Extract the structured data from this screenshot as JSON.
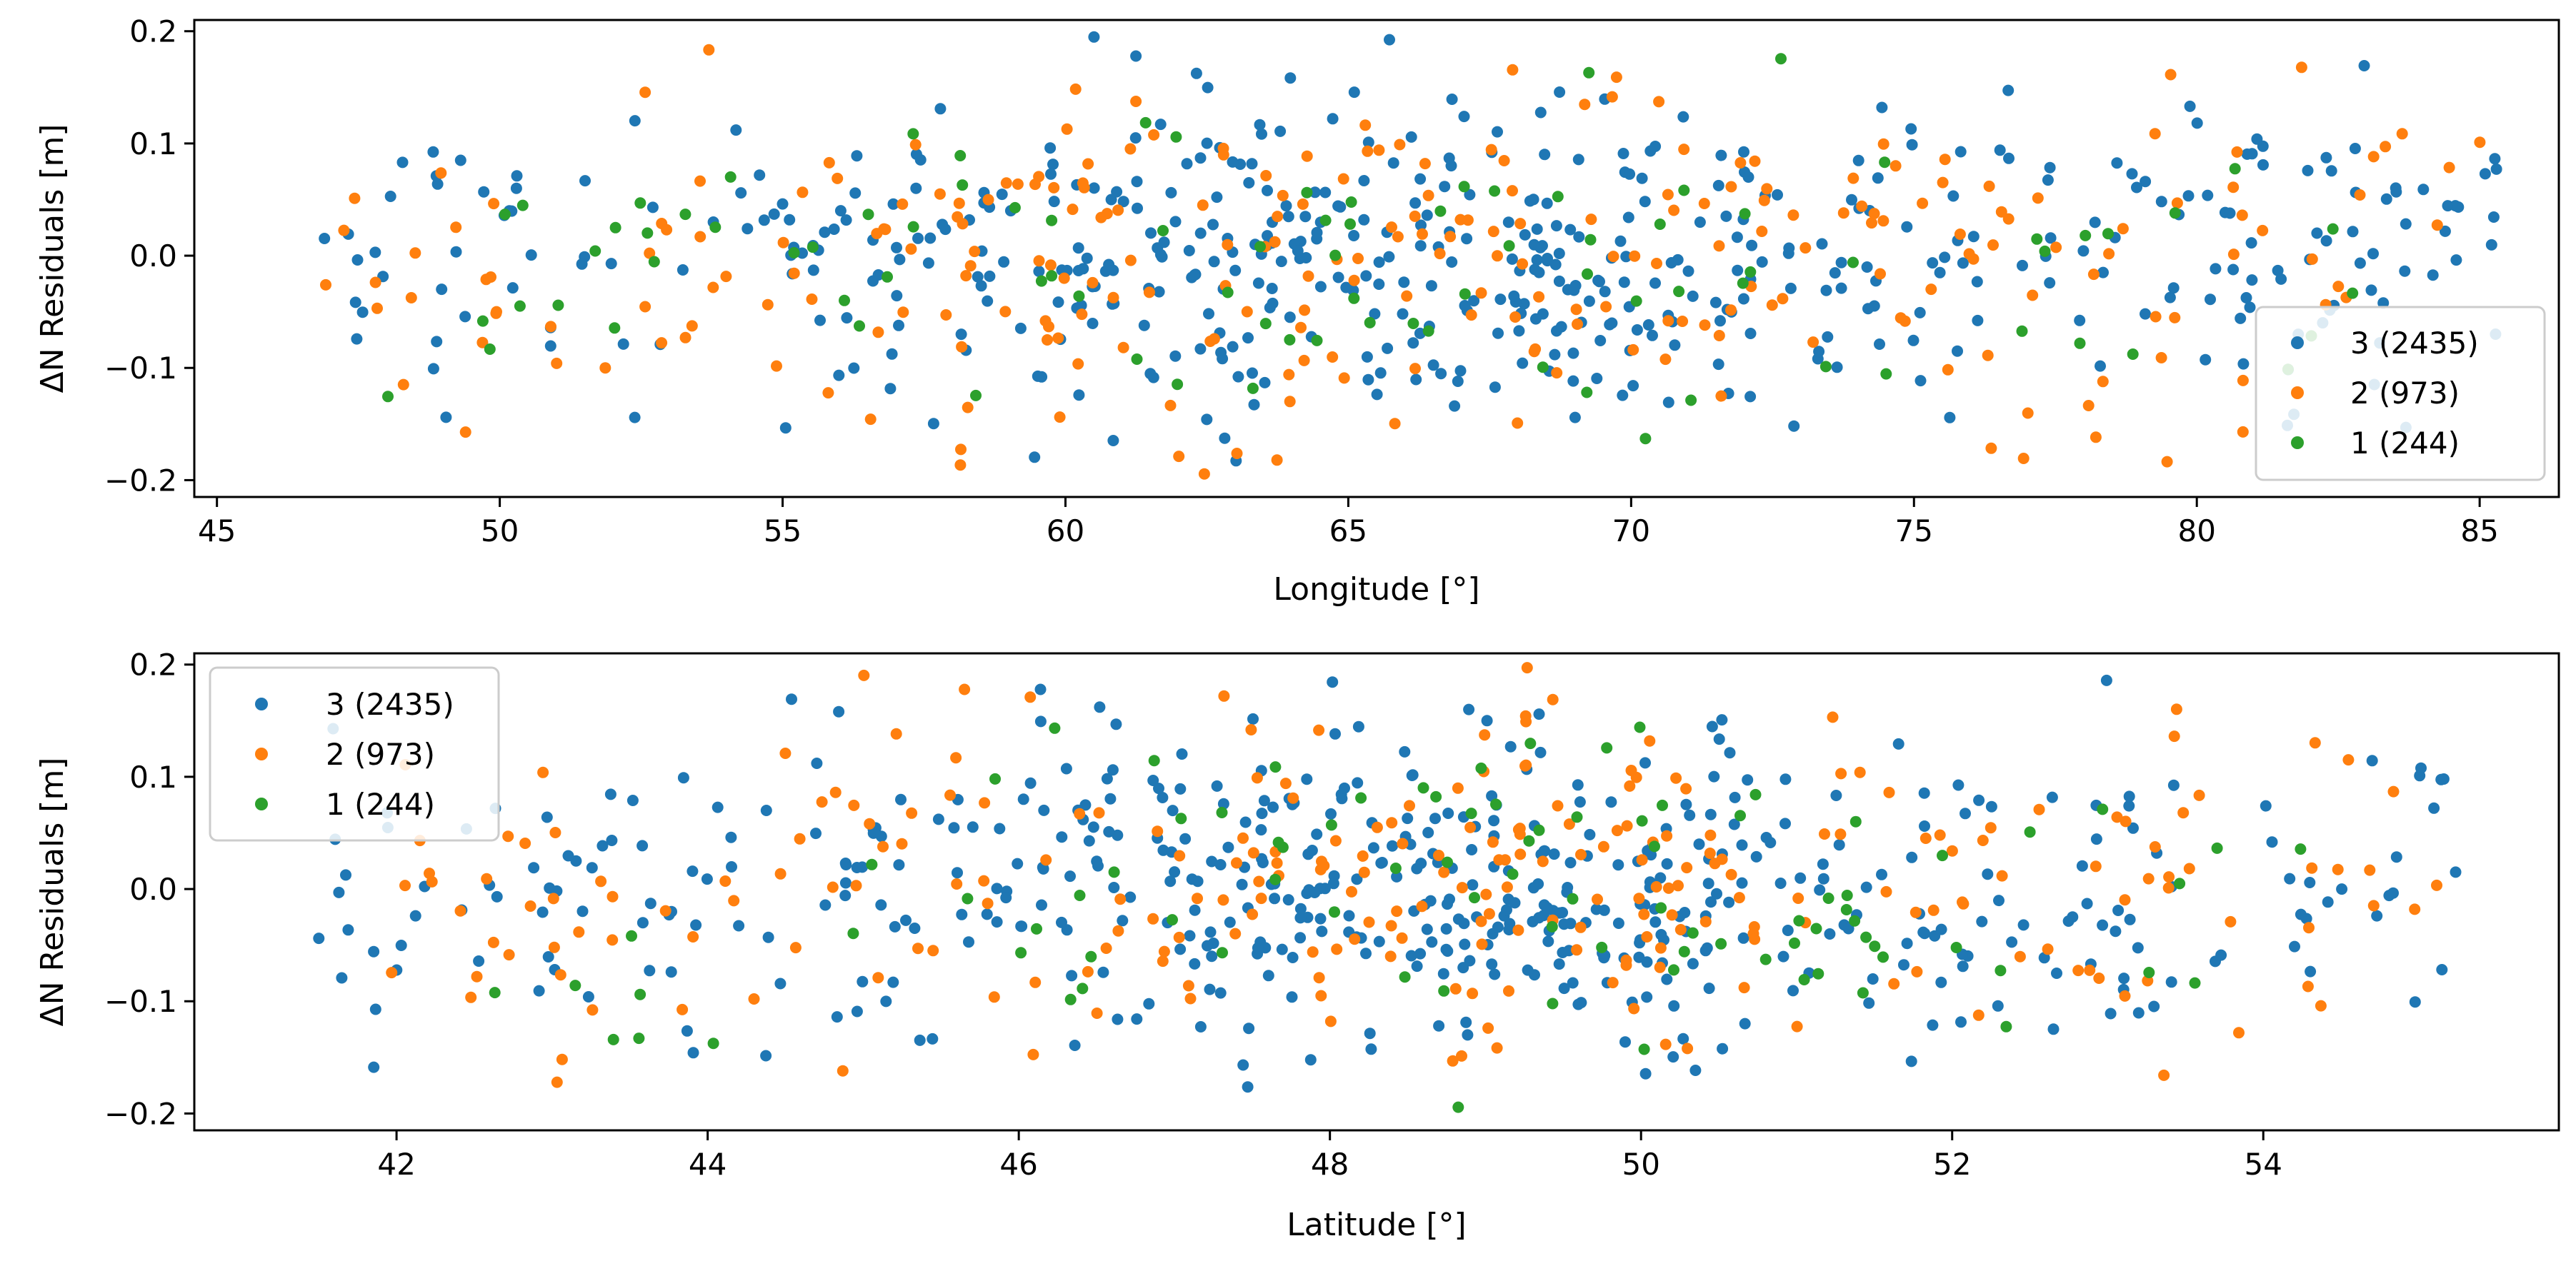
{
  "chart_data": [
    {
      "type": "scatter",
      "id": "top",
      "xlabel": "Longitude [°]",
      "ylabel": "ΔN Residuals [m]",
      "xlim": [
        44.6,
        86.4
      ],
      "ylim": [
        -0.215,
        0.21
      ],
      "xticks": [
        45,
        50,
        55,
        60,
        65,
        70,
        75,
        80,
        85
      ],
      "xtick_labels": [
        "45",
        "50",
        "55",
        "60",
        "65",
        "70",
        "75",
        "80",
        "85"
      ],
      "yticks": [
        -0.2,
        -0.1,
        0.0,
        0.1,
        0.2
      ],
      "ytick_labels": [
        "−0.2",
        "−0.1",
        "0.0",
        "0.1",
        "0.2"
      ],
      "legend_position": "lower-right",
      "series": [
        {
          "name": "3 (2435)",
          "color": "#1f77b4",
          "count": 2435,
          "xrange": [
            46.9,
            85.3
          ],
          "points": 520,
          "seed": 11
        },
        {
          "name": "2 (973)",
          "color": "#ff7f0e",
          "count": 973,
          "xrange": [
            46.9,
            85.3
          ],
          "points": 260,
          "seed": 23
        },
        {
          "name": "1 (244)",
          "color": "#2ca02c",
          "count": 244,
          "xrange": [
            47.4,
            83.0
          ],
          "points": 90,
          "seed": 37
        }
      ]
    },
    {
      "type": "scatter",
      "id": "bottom",
      "xlabel": "Latitude [°]",
      "ylabel": "ΔN Residuals [m]",
      "xlim": [
        40.7,
        55.9
      ],
      "ylim": [
        -0.215,
        0.21
      ],
      "xticks": [
        42,
        44,
        46,
        48,
        50,
        52,
        54
      ],
      "xtick_labels": [
        "42",
        "44",
        "46",
        "48",
        "50",
        "52",
        "54"
      ],
      "yticks": [
        -0.2,
        -0.1,
        0.0,
        0.1,
        0.2
      ],
      "ytick_labels": [
        "−0.2",
        "−0.1",
        "0.0",
        "0.1",
        "0.2"
      ],
      "legend_position": "upper-left",
      "series": [
        {
          "name": "3 (2435)",
          "color": "#1f77b4",
          "count": 2435,
          "xrange": [
            41.4,
            55.3
          ],
          "points": 520,
          "seed": 53
        },
        {
          "name": "2 (973)",
          "color": "#ff7f0e",
          "count": 973,
          "xrange": [
            41.9,
            55.2
          ],
          "points": 260,
          "seed": 67
        },
        {
          "name": "1 (244)",
          "color": "#2ca02c",
          "count": 244,
          "xrange": [
            42.6,
            54.5
          ],
          "points": 90,
          "seed": 79
        }
      ]
    }
  ]
}
